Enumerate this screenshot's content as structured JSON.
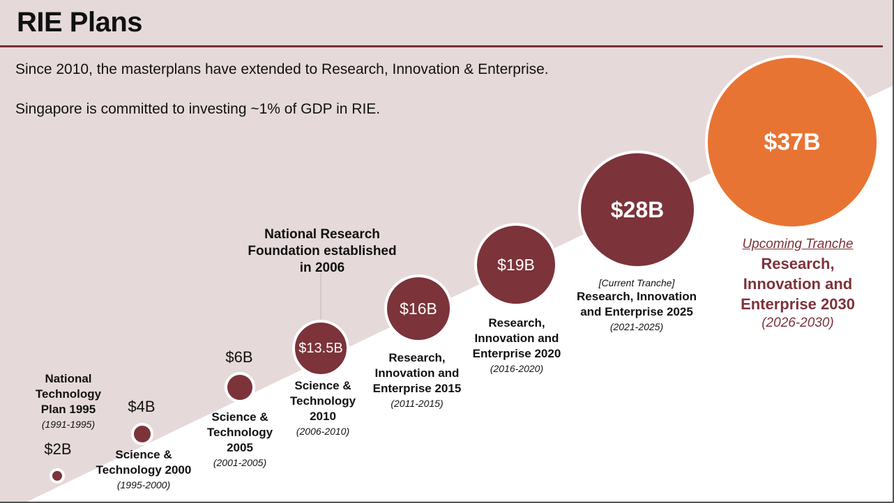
{
  "title": "RIE Plans",
  "subtitle1": "Since 2010, the masterplans have extended to Research, Innovation & Enterprise.",
  "subtitle2": "Singapore is committed to investing ~1% of GDP in RIE.",
  "colors": {
    "background": "#e6d9d9",
    "accent": "#7c333a",
    "upcoming": "#e87433"
  },
  "plans": [
    {
      "amount": "$2B",
      "value": 2,
      "name": "National Technology Plan 1995",
      "years": "(1991-1995)"
    },
    {
      "amount": "$4B",
      "value": 4,
      "name": "Science & Technology 2000",
      "years": "(1995-2000)"
    },
    {
      "amount": "$6B",
      "value": 6,
      "name": "Science & Technology 2005",
      "years": "(2001-2005)"
    },
    {
      "amount": "$13.5B",
      "value": 13.5,
      "name": "Science & Technology 2010",
      "years": "(2006-2010)"
    },
    {
      "amount": "$16B",
      "value": 16,
      "name": "Research, Innovation and Enterprise 2015",
      "years": "(2011-2015)"
    },
    {
      "amount": "$19B",
      "value": 19,
      "name": "Research, Innovation and Enterprise 2020",
      "years": "(2016-2020)"
    },
    {
      "amount": "$28B",
      "value": 28,
      "tag": "[Current Tranche]",
      "name": "Research, Innovation and Enterprise 2025",
      "years": "(2021-2025)"
    },
    {
      "amount": "$37B",
      "value": 37,
      "tag": "Upcoming Tranche",
      "name": "Research, Innovation and Enterprise 2030",
      "years": "(2026-2030)"
    }
  ],
  "annotation": "National Research Foundation established in 2006"
}
